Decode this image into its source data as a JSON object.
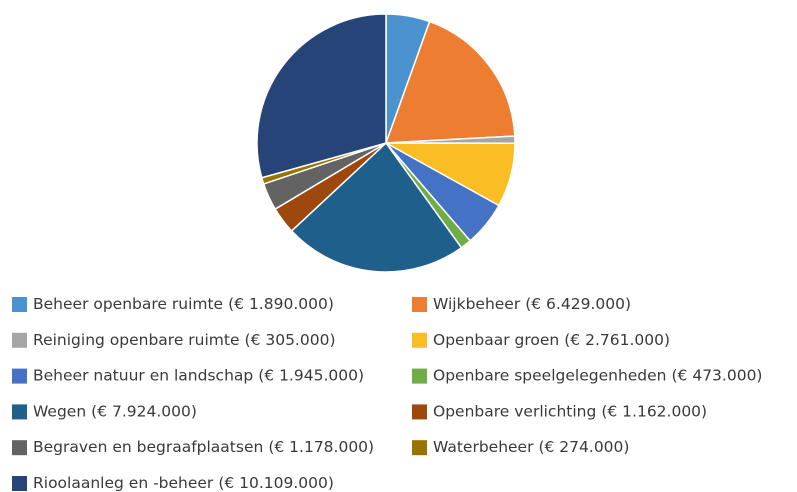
{
  "chart_data": {
    "type": "pie",
    "categories": [
      "Beheer openbare ruimte",
      "Wijkbeheer",
      "Reiniging openbare ruimte",
      "Openbaar groen",
      "Beheer natuur en landschap",
      "Openbare speelgelegenheden",
      "Wegen",
      "Openbare verlichting",
      "Begraven en begraafplaatsen",
      "Waterbeheer",
      "Rioolaanleg en -beheer"
    ],
    "values": [
      1890000,
      6429000,
      305000,
      2761000,
      1945000,
      473000,
      7924000,
      1162000,
      1178000,
      274000,
      10109000
    ],
    "value_labels": [
      "(€ 1.890.000)",
      "(€ 6.429.000)",
      "(€ 305.000)",
      "(€ 2.761.000)",
      "(€ 1.945.000)",
      "(€ 473.000)",
      "(€ 7.924.000)",
      "(€ 1.162.000)",
      "(€ 1.178.000)",
      "(€ 274.000)",
      "(€ 10.109.000)"
    ],
    "colors": [
      "#4b93cf",
      "#ed7d31",
      "#a5a5a5",
      "#fbbd24",
      "#4472c4",
      "#70ad47",
      "#1f5f8b",
      "#9e480e",
      "#636363",
      "#997300",
      "#264478"
    ],
    "legend": "bottom"
  }
}
